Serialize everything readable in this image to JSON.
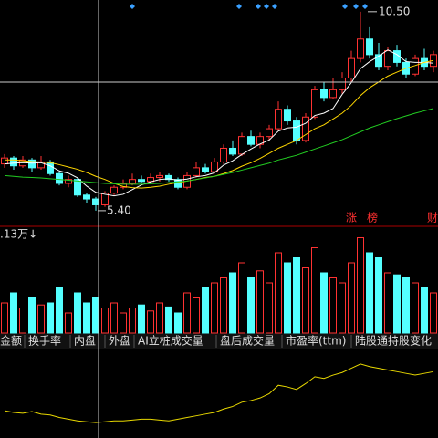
{
  "chart_data": [
    {
      "type": "candlestick",
      "up_color": "#ff3232",
      "down_color": "#54ffff",
      "open": [
        6.6,
        6.75,
        6.55,
        6.7,
        6.5,
        6.65,
        6.35,
        6.1,
        6.2,
        5.8,
        5.7,
        5.55,
        5.85,
        6.0,
        6.1,
        6.2,
        6.15,
        6.25,
        6.3,
        6.2,
        6.0,
        6.3,
        6.5,
        6.4,
        6.65,
        7.0,
        6.85,
        7.3,
        7.1,
        7.3,
        7.5,
        8.0,
        7.7,
        7.2,
        7.8,
        8.5,
        8.3,
        8.5,
        8.8,
        9.3,
        9.8,
        9.4,
        9.1,
        9.5,
        9.2,
        8.9,
        9.3,
        9.1
      ],
      "close": [
        6.75,
        6.55,
        6.7,
        6.5,
        6.65,
        6.35,
        6.1,
        6.2,
        5.8,
        5.7,
        5.55,
        5.85,
        6.0,
        6.1,
        6.2,
        6.15,
        6.25,
        6.3,
        6.2,
        6.0,
        6.3,
        6.5,
        6.4,
        6.65,
        7.0,
        6.85,
        7.3,
        7.1,
        7.3,
        7.5,
        8.0,
        7.7,
        7.2,
        7.8,
        8.5,
        8.3,
        8.5,
        8.8,
        9.3,
        9.8,
        9.4,
        9.1,
        9.5,
        9.2,
        8.9,
        9.3,
        9.1,
        9.4
      ],
      "high": [
        6.85,
        6.8,
        6.8,
        6.75,
        6.8,
        6.7,
        6.4,
        6.3,
        6.25,
        5.85,
        5.75,
        5.9,
        6.05,
        6.2,
        6.35,
        6.3,
        6.35,
        6.4,
        6.35,
        6.25,
        6.4,
        6.65,
        6.6,
        6.75,
        7.1,
        7.2,
        7.4,
        7.45,
        7.4,
        7.6,
        8.2,
        8.1,
        7.8,
        7.9,
        8.6,
        8.7,
        8.8,
        8.95,
        9.5,
        10.5,
        10.1,
        9.7,
        9.6,
        9.65,
        9.3,
        9.4,
        9.55,
        9.5
      ],
      "low": [
        6.5,
        6.45,
        6.5,
        6.4,
        6.45,
        6.3,
        6.05,
        6.0,
        5.75,
        5.6,
        5.4,
        5.5,
        5.8,
        5.95,
        6.05,
        6.1,
        6.1,
        6.15,
        6.15,
        5.95,
        5.95,
        6.25,
        6.35,
        6.35,
        6.6,
        6.8,
        6.8,
        7.05,
        7.0,
        7.2,
        7.45,
        7.6,
        7.1,
        7.15,
        7.75,
        8.2,
        8.25,
        8.4,
        8.7,
        9.2,
        9.3,
        9.0,
        9.0,
        9.1,
        8.8,
        8.85,
        9.0,
        8.95
      ],
      "ma": [
        {
          "color": "#ffffff",
          "values": [
            6.6,
            6.62,
            6.63,
            6.62,
            6.63,
            6.55,
            6.42,
            6.36,
            6.24,
            6.03,
            5.87,
            5.82,
            5.78,
            5.82,
            5.94,
            6.06,
            6.14,
            6.2,
            6.22,
            6.18,
            6.21,
            6.27,
            6.3,
            6.37,
            6.57,
            6.68,
            6.84,
            6.98,
            7.11,
            7.21,
            7.44,
            7.52,
            7.54,
            7.64,
            7.84,
            7.9,
            8.02,
            8.38,
            8.68,
            9.04,
            9.22,
            9.36,
            9.52,
            9.4,
            9.22,
            9.2,
            9.2,
            9.18
          ]
        },
        {
          "color": "#ffd700",
          "values": [
            6.7,
            6.7,
            6.68,
            6.66,
            6.65,
            6.63,
            6.58,
            6.52,
            6.46,
            6.38,
            6.28,
            6.2,
            6.1,
            6.02,
            5.99,
            5.98,
            6.0,
            6.03,
            6.08,
            6.12,
            6.16,
            6.2,
            6.25,
            6.28,
            6.35,
            6.43,
            6.54,
            6.63,
            6.74,
            6.87,
            7.0,
            7.1,
            7.2,
            7.35,
            7.5,
            7.6,
            7.75,
            7.9,
            8.1,
            8.35,
            8.55,
            8.7,
            8.85,
            8.95,
            9.05,
            9.12,
            9.2,
            9.25
          ]
        },
        {
          "color": "#22cc22",
          "values": [
            6.3,
            6.28,
            6.26,
            6.25,
            6.24,
            6.22,
            6.2,
            6.18,
            6.16,
            6.14,
            6.12,
            6.1,
            6.09,
            6.08,
            6.08,
            6.08,
            6.09,
            6.1,
            6.12,
            6.14,
            6.16,
            6.2,
            6.24,
            6.28,
            6.33,
            6.38,
            6.44,
            6.5,
            6.56,
            6.62,
            6.7,
            6.76,
            6.82,
            6.9,
            6.98,
            7.06,
            7.14,
            7.22,
            7.32,
            7.42,
            7.52,
            7.6,
            7.68,
            7.76,
            7.83,
            7.9,
            7.96,
            8.02
          ]
        }
      ],
      "ylim": [
        5.07,
        10.8
      ],
      "annotations": [
        {
          "value": 10.5,
          "label": "10.50"
        },
        {
          "value": 5.4,
          "label": "5.40"
        }
      ]
    },
    {
      "type": "bar",
      "label": ".13万↓",
      "values": [
        30,
        40,
        25,
        35,
        28,
        30,
        45,
        20,
        40,
        30,
        35,
        25,
        30,
        20,
        25,
        28,
        22,
        30,
        26,
        20,
        40,
        35,
        45,
        50,
        55,
        60,
        70,
        55,
        62,
        50,
        80,
        70,
        75,
        65,
        85,
        60,
        55,
        50,
        70,
        95,
        80,
        75,
        60,
        58,
        55,
        50,
        45,
        40
      ],
      "ylim": [
        0,
        100
      ]
    },
    {
      "type": "line",
      "color": "#e8d800",
      "values": [
        30,
        28,
        27,
        29,
        26,
        25,
        22,
        20,
        18,
        17,
        16,
        17,
        18,
        18,
        19,
        20,
        20,
        19,
        18,
        20,
        22,
        24,
        26,
        28,
        32,
        35,
        40,
        42,
        45,
        50,
        60,
        58,
        55,
        62,
        70,
        68,
        72,
        75,
        80,
        85,
        82,
        80,
        78,
        76,
        74,
        72,
        74,
        76
      ],
      "ylim": [
        0,
        100
      ]
    }
  ],
  "signals": [
    "涨",
    "榜",
    "财"
  ],
  "tabs": [
    "金额",
    "换手率",
    "内盘",
    "外盘",
    "AI立桩成交量",
    "盘后成交量",
    "市盈率(ttm)",
    "陆股通持股变化"
  ]
}
